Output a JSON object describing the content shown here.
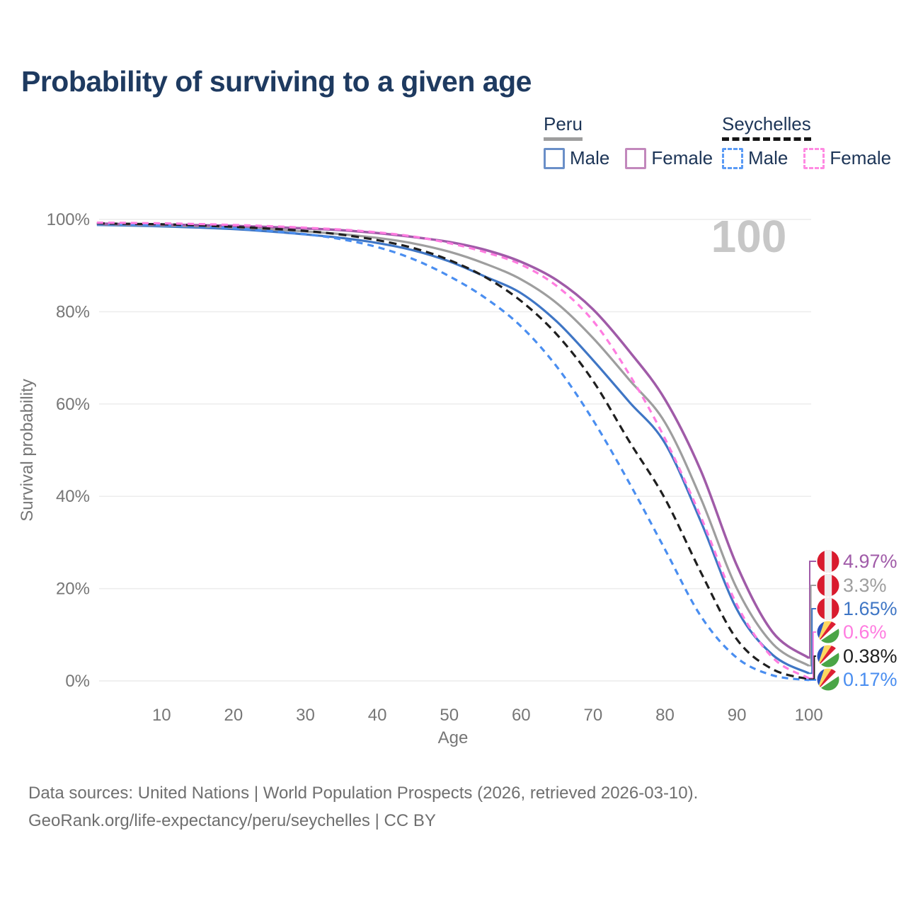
{
  "title": "Probability of surviving to a given age",
  "watermark": "100",
  "legend": {
    "groups": [
      {
        "name": "Peru",
        "line_style": "solid",
        "line_color": "#9e9e9e",
        "items": [
          {
            "label": "Male",
            "color": "#6a8fc8",
            "checked": false
          },
          {
            "label": "Female",
            "color": "#c288bc",
            "checked": false
          }
        ]
      },
      {
        "name": "Seychelles",
        "line_style": "dashed",
        "line_color": "#151515",
        "items": [
          {
            "label": "Male",
            "color": "#5b9bf5",
            "checked": false
          },
          {
            "label": "Female",
            "color": "#ff8ae2",
            "checked": false
          }
        ]
      }
    ]
  },
  "flags": {
    "peru": {
      "red": "#d91b2e",
      "white": "#efefef"
    },
    "seychelles": {
      "blue": "#2a52be",
      "yellow": "#fcd75f",
      "red": "#dd2033",
      "white": "#ffffff",
      "green": "#4aa546"
    }
  },
  "chart_data": {
    "type": "line",
    "title": "Probability of surviving to a given age",
    "x_label": "Age",
    "y_label": "Survival probability",
    "x_range": [
      1,
      100
    ],
    "y_range": [
      0,
      100
    ],
    "x_ticks": [
      10,
      20,
      30,
      40,
      50,
      60,
      70,
      80,
      90,
      100
    ],
    "y_ticks": [
      0,
      20,
      40,
      60,
      80,
      100
    ],
    "y_tick_suffix": "%",
    "grid": true,
    "legend_position": "top-right",
    "hovered_age": 100,
    "ages": [
      1,
      5,
      10,
      15,
      20,
      25,
      30,
      35,
      40,
      45,
      50,
      55,
      60,
      65,
      70,
      75,
      80,
      85,
      90,
      95,
      100
    ],
    "series": [
      {
        "name": "Peru Male",
        "country": "Peru",
        "sex": "Male",
        "color": "#3f76c5",
        "dashed": false,
        "flag": "peru",
        "end_value": 1.65,
        "end_label": "1.65%",
        "values": [
          98.8,
          98.7,
          98.5,
          98.25,
          97.9,
          97.4,
          96.75,
          96.0,
          94.9,
          93.3,
          90.9,
          87.6,
          84.0,
          77.8,
          69.5,
          60.5,
          51.5,
          34.5,
          15.5,
          5.6,
          1.65
        ]
      },
      {
        "name": "Peru",
        "country": "Peru",
        "sex": "Both",
        "color": "#9e9e9e",
        "dashed": false,
        "flag": "peru",
        "end_value": 3.3,
        "end_label": "3.3%",
        "values": [
          98.95,
          98.85,
          98.7,
          98.5,
          98.25,
          97.85,
          97.4,
          96.8,
          96.0,
          94.8,
          93.0,
          90.4,
          87.0,
          81.8,
          74.3,
          65.3,
          56.0,
          39.5,
          20.0,
          8.0,
          3.3
        ]
      },
      {
        "name": "Peru Female",
        "country": "Peru",
        "sex": "Female",
        "color": "#a05ba8",
        "dashed": false,
        "flag": "peru",
        "end_value": 4.97,
        "end_label": "4.97%",
        "values": [
          99.1,
          99.0,
          98.9,
          98.75,
          98.6,
          98.35,
          98.05,
          97.65,
          97.05,
          96.2,
          95.1,
          93.4,
          90.8,
          86.8,
          80.5,
          71.5,
          61.0,
          45.5,
          25.0,
          10.5,
          4.97
        ]
      },
      {
        "name": "Seychelles Male",
        "country": "Seychelles",
        "sex": "Male",
        "color": "#4a8ef0",
        "dashed": true,
        "flag": "seychelles",
        "end_value": 0.17,
        "end_label": "0.17%",
        "values": [
          99.0,
          98.9,
          98.75,
          98.5,
          98.1,
          97.5,
          96.8,
          95.7,
          94.0,
          91.4,
          87.7,
          83.0,
          76.8,
          68.0,
          56.5,
          43.0,
          28.5,
          14.0,
          5.0,
          1.2,
          0.17
        ]
      },
      {
        "name": "Seychelles",
        "country": "Seychelles",
        "sex": "Both",
        "color": "#1f1f1f",
        "dashed": true,
        "flag": "seychelles",
        "end_value": 0.38,
        "end_label": "0.38%",
        "values": [
          99.15,
          99.05,
          98.95,
          98.7,
          98.4,
          98.0,
          97.5,
          96.7,
          95.5,
          93.8,
          91.2,
          87.5,
          82.3,
          75.0,
          65.0,
          52.0,
          39.5,
          23.5,
          9.0,
          2.5,
          0.38
        ]
      },
      {
        "name": "Seychelles Female",
        "country": "Seychelles",
        "sex": "Female",
        "color": "#ff7ce0",
        "dashed": true,
        "flag": "seychelles",
        "end_value": 0.6,
        "end_label": "0.6%",
        "values": [
          99.3,
          99.25,
          99.15,
          99.0,
          98.8,
          98.55,
          98.2,
          97.8,
          97.2,
          96.3,
          94.85,
          92.9,
          90.2,
          85.5,
          78.0,
          66.5,
          52.5,
          35.5,
          16.5,
          5.0,
          0.6
        ]
      }
    ]
  },
  "footer": {
    "line1": "Data sources: United Nations | World Population Prospects (2026, retrieved 2026-03-10).",
    "line2": "GeoRank.org/life-expectancy/peru/seychelles | CC BY"
  }
}
